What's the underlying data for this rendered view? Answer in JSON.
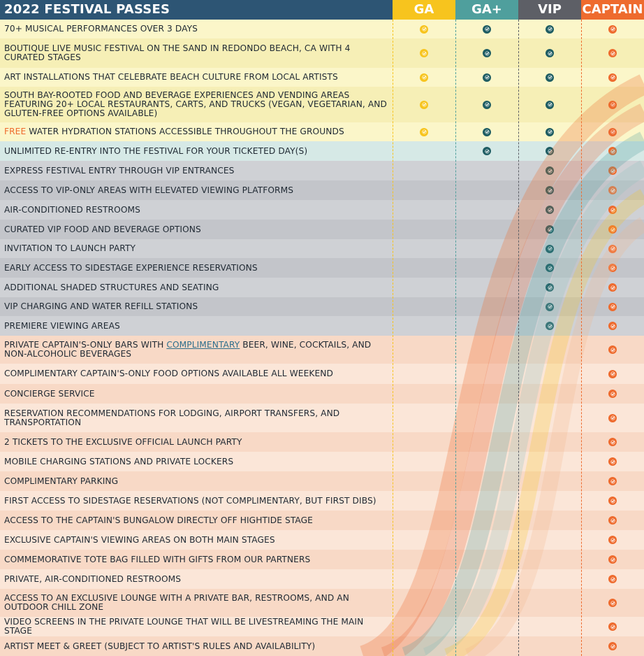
{
  "header": {
    "title": "2022 FESTIVAL PASSES",
    "columns": [
      "GA",
      "GA+",
      "VIP",
      "CAPTAIN"
    ]
  },
  "colors": {
    "header_bg": "#2d5574",
    "ga": "#f7c41e",
    "ga_plus": "#4f9f9d",
    "vip": "#5d5f66",
    "captain": "#ee6b2e",
    "section_general": "#fbf6c9",
    "section_gaplus": "#d6e9e6",
    "section_vip": "#cfd1d5",
    "section_captain": "#f8d9c6"
  },
  "rows": [
    {
      "section": "ga",
      "height": 27,
      "text": "70+ musical performances over 3 days",
      "tiers": [
        "ga",
        "gap",
        "vip",
        "cap"
      ]
    },
    {
      "section": "ga",
      "height": 42,
      "text": "Boutique live music festival on the sand in Redondo Beach, CA with 4 curated stages",
      "tiers": [
        "ga",
        "gap",
        "vip",
        "cap"
      ]
    },
    {
      "section": "ga",
      "height": 27,
      "text": "Art installations that celebrate beach culture from local artists",
      "tiers": [
        "ga",
        "gap",
        "vip",
        "cap"
      ]
    },
    {
      "section": "ga",
      "height": 51,
      "text": "South Bay-rooted food and beverage experiences and vending areas featuring 20+ local restaurants, carts, and trucks (vegan, vegetarian, and gluten-free options available)",
      "tiers": [
        "ga",
        "gap",
        "vip",
        "cap"
      ]
    },
    {
      "section": "ga",
      "height": 27,
      "pre": "Free",
      "text": " water hydration stations accessible throughout the grounds",
      "tiers": [
        "ga",
        "gap",
        "vip",
        "cap"
      ]
    },
    {
      "section": "gaplus",
      "height": 28,
      "text": "Unlimited re-entry into the festival for your ticketed day(s)",
      "tiers": [
        "gap",
        "vip",
        "cap"
      ]
    },
    {
      "section": "vip",
      "height": 28,
      "text": "Express festival entry through VIP entrances",
      "tiers": [
        "vip",
        "cap"
      ]
    },
    {
      "section": "vip",
      "height": 28,
      "text": "Access to VIP-only areas with elevated viewing platforms",
      "tiers": [
        "vip",
        "cap"
      ]
    },
    {
      "section": "vip",
      "height": 28,
      "text": "Air-conditioned restrooms",
      "tiers": [
        "vip",
        "cap"
      ]
    },
    {
      "section": "vip",
      "height": 28,
      "text": "Curated VIP food and beverage options",
      "tiers": [
        "vip",
        "cap"
      ]
    },
    {
      "section": "vip",
      "height": 27,
      "text": "Invitation to launch party",
      "tiers": [
        "vip",
        "cap"
      ]
    },
    {
      "section": "vip",
      "height": 28,
      "text": "Early access to sidestage experience reservations",
      "tiers": [
        "vip",
        "cap"
      ]
    },
    {
      "section": "vip",
      "height": 28,
      "text": "Additional shaded structures and seating",
      "tiers": [
        "vip",
        "cap"
      ]
    },
    {
      "section": "vip",
      "height": 27,
      "text": "VIP charging and water refill stations",
      "tiers": [
        "vip",
        "cap"
      ]
    },
    {
      "section": "vip",
      "height": 28,
      "text": "Premiere viewing areas",
      "tiers": [
        "vip",
        "cap"
      ]
    },
    {
      "section": "cap",
      "height": 40,
      "pre": "Private Captain's-only bars with ",
      "link": "complimentary",
      "text": " beer, wine, cocktails, and non-alcoholic beverages",
      "tiers": [
        "cap"
      ]
    },
    {
      "section": "cap",
      "height": 29,
      "text": "Complimentary Captain's-only food options available all weekend",
      "tiers": [
        "cap"
      ]
    },
    {
      "section": "cap",
      "height": 28,
      "text": "Concierge service",
      "tiers": [
        "cap"
      ]
    },
    {
      "section": "cap",
      "height": 41,
      "text": "Reservation recommendations for lodging, airport transfers, and transportation",
      "tiers": [
        "cap"
      ]
    },
    {
      "section": "cap",
      "height": 28,
      "text": "2 tickets to the exclusive official launch party",
      "tiers": [
        "cap"
      ]
    },
    {
      "section": "cap",
      "height": 28,
      "text": "Mobile charging stations and private lockers",
      "tiers": [
        "cap"
      ]
    },
    {
      "section": "cap",
      "height": 28,
      "text": "Complimentary parking",
      "tiers": [
        "cap"
      ]
    },
    {
      "section": "cap",
      "height": 28,
      "text": "First access to sidestage reservations (not complimentary, but first dibs)",
      "tiers": [
        "cap"
      ]
    },
    {
      "section": "cap",
      "height": 28,
      "text": "Access to the Captain's Bungalow directly off Hightide Stage",
      "tiers": [
        "cap"
      ]
    },
    {
      "section": "cap",
      "height": 28,
      "text": "Exclusive Captain's viewing areas on both main stages",
      "tiers": [
        "cap"
      ]
    },
    {
      "section": "cap",
      "height": 28,
      "text": "Commemorative tote bag filled with gifts from our partners",
      "tiers": [
        "cap"
      ]
    },
    {
      "section": "cap",
      "height": 28,
      "text": "Private, air-conditioned restrooms",
      "tiers": [
        "cap"
      ]
    },
    {
      "section": "cap",
      "height": 40,
      "text": "Access to an exclusive lounge with a private bar, restrooms, and an outdoor chill zone",
      "tiers": [
        "cap"
      ]
    },
    {
      "section": "cap",
      "height": 28,
      "text": "Video screens in the private lounge that will be livestreaming the main stage",
      "tiers": [
        "cap"
      ]
    },
    {
      "section": "cap",
      "height": 28,
      "text": "Artist meet & greet (subject to artist's rules and availability)",
      "tiers": [
        "cap"
      ]
    }
  ]
}
